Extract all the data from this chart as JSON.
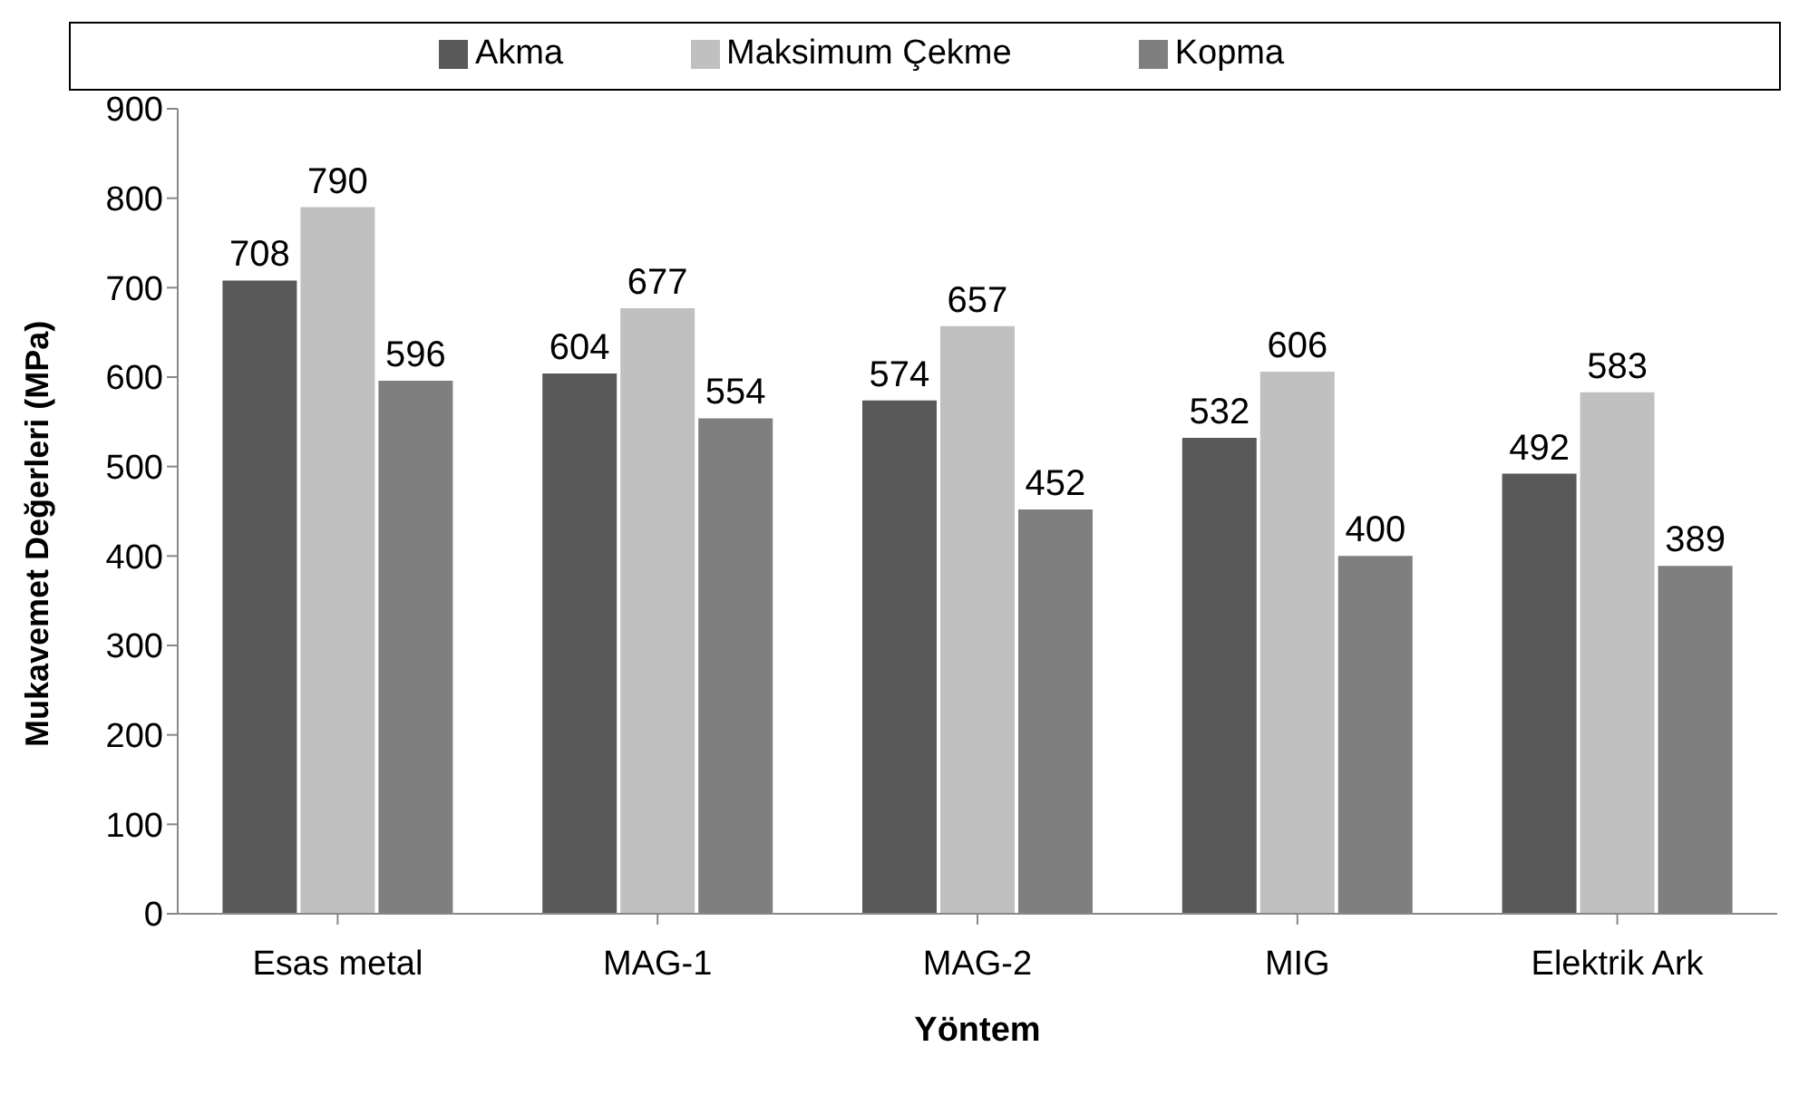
{
  "chart_data": {
    "type": "bar",
    "xlabel": "Yöntem",
    "ylabel": "Mukavemet Değerleri (MPa)",
    "categories": [
      "Esas metal",
      "MAG-1",
      "MAG-2",
      "MIG",
      "Elektrik Ark"
    ],
    "series": [
      {
        "name": "Akma",
        "color": "#595959",
        "values": [
          708,
          604,
          574,
          532,
          492
        ]
      },
      {
        "name": "Maksimum Çekme",
        "color": "#c0c0c0",
        "values": [
          790,
          677,
          657,
          606,
          583
        ]
      },
      {
        "name": "Kopma",
        "color": "#7f7f7f",
        "values": [
          596,
          554,
          452,
          400,
          389
        ]
      }
    ],
    "ylim": [
      0,
      900
    ],
    "yticks": [
      0,
      100,
      200,
      300,
      400,
      500,
      600,
      700,
      800,
      900
    ],
    "grid": false,
    "legend": "top",
    "data_labels": true
  }
}
